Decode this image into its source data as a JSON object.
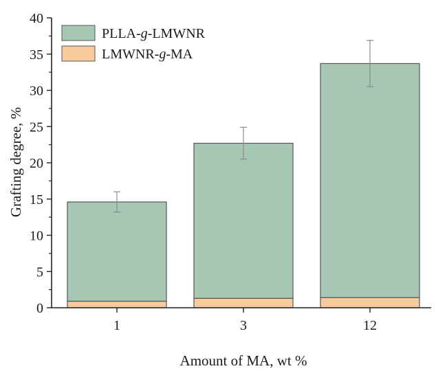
{
  "chart_data": {
    "type": "bar",
    "stacked": true,
    "categories": [
      "1",
      "3",
      "12"
    ],
    "series": [
      {
        "name": "LMWNR-g-MA",
        "values": [
          0.9,
          1.3,
          1.4
        ],
        "color": "#f9cb9c"
      },
      {
        "name": "PLLA-g-LMWNR",
        "values": [
          13.7,
          21.4,
          32.3
        ],
        "color": "#a7c7b5"
      }
    ],
    "totals": [
      14.6,
      22.7,
      33.7
    ],
    "error": [
      1.4,
      2.2,
      3.2
    ],
    "xlabel": "Amount of MA, wt %",
    "ylabel": "Grafting degree, %",
    "ylim": [
      0,
      40
    ],
    "yticks": [
      0,
      5,
      10,
      15,
      20,
      25,
      30,
      35,
      40
    ],
    "grid": false,
    "legend_position": "top-left",
    "legend": {
      "items": [
        {
          "prefix": "PLLA-",
          "italic": "g",
          "suffix": "-LMWNR",
          "color": "#a7c7b5"
        },
        {
          "prefix": "LMWNR-",
          "italic": "g",
          "suffix": "-MA",
          "color": "#f9cb9c"
        }
      ]
    }
  }
}
